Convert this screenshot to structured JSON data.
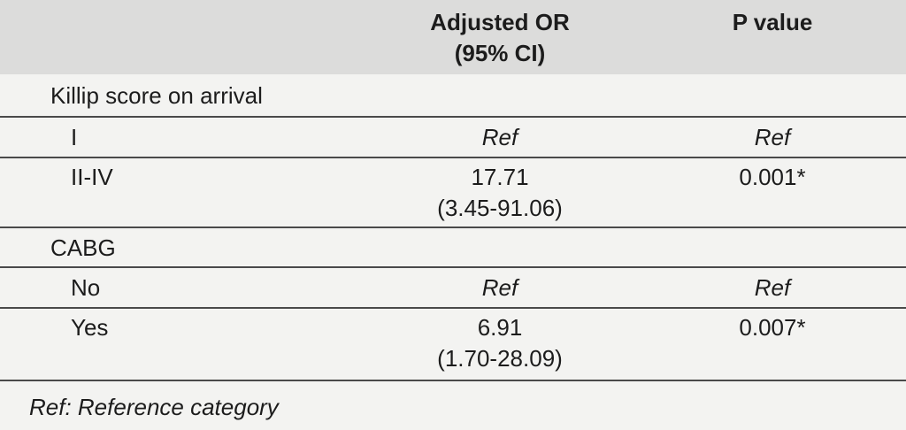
{
  "table": {
    "columns": [
      [
        "Adjusted OR",
        "(95% CI)"
      ],
      [
        "P value"
      ]
    ],
    "sections": [
      {
        "title": "Killip score on arrival",
        "rows": [
          {
            "label": "I",
            "or": [
              "Ref"
            ],
            "p": "Ref"
          },
          {
            "label": "II-IV",
            "or": [
              "17.71",
              "(3.45-91.06)"
            ],
            "p": "0.001*"
          }
        ]
      },
      {
        "title": "CABG",
        "rows": [
          {
            "label": "No",
            "or": [
              "Ref"
            ],
            "p": "Ref"
          },
          {
            "label": "Yes",
            "or": [
              "6.91",
              "(1.70-28.09)"
            ],
            "p": "0.007*"
          }
        ]
      }
    ],
    "footnote": "Ref: Reference category"
  }
}
